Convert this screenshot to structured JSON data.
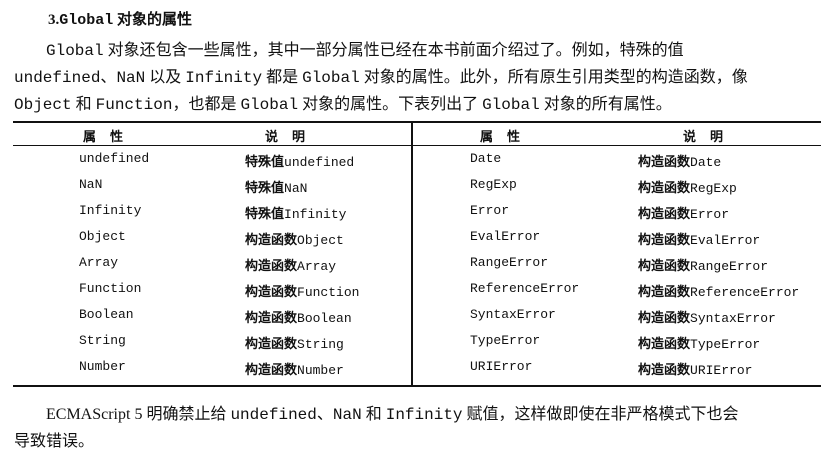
{
  "heading": {
    "num": "3.",
    "code": "Global",
    "text": " 对象的属性"
  },
  "paragraph1": [
    [
      {
        "c": "Global"
      },
      {
        "t": " 对象还包含一些属性，其中一部分属性已经在本书前面介绍过了。例如，特殊的值"
      }
    ],
    [
      {
        "c": "undefined"
      },
      {
        "t": "、"
      },
      {
        "c": "NaN"
      },
      {
        "t": " 以及 "
      },
      {
        "c": "Infinity"
      },
      {
        "t": " 都是 "
      },
      {
        "c": "Global"
      },
      {
        "t": " 对象的属性。此外，所有原生引用类型的构造函数，像"
      }
    ],
    [
      {
        "c": "Object"
      },
      {
        "t": " 和 "
      },
      {
        "c": "Function"
      },
      {
        "t": "，也都是 "
      },
      {
        "c": "Global"
      },
      {
        "t": " 对象的属性。下表列出了 "
      },
      {
        "c": "Global"
      },
      {
        "t": " 对象的所有属性。"
      }
    ]
  ],
  "table": {
    "headers": [
      "属性",
      "说明",
      "属性",
      "说明"
    ],
    "rows": [
      [
        [
          "undefined",
          "特殊值",
          "undefined"
        ],
        [
          "Date",
          "构造函数",
          "Date"
        ]
      ],
      [
        [
          "NaN",
          "特殊值",
          "NaN"
        ],
        [
          "RegExp",
          "构造函数",
          "RegExp"
        ]
      ],
      [
        [
          "Infinity",
          "特殊值",
          "Infinity"
        ],
        [
          "Error",
          "构造函数",
          "Error"
        ]
      ],
      [
        [
          "Object",
          "构造函数",
          "Object"
        ],
        [
          "EvalError",
          "构造函数",
          "EvalError"
        ]
      ],
      [
        [
          "Array",
          "构造函数",
          "Array"
        ],
        [
          "RangeError",
          "构造函数",
          "RangeError"
        ]
      ],
      [
        [
          "Function",
          "构造函数",
          "Function"
        ],
        [
          "ReferenceError",
          "构造函数",
          "ReferenceError"
        ]
      ],
      [
        [
          "Boolean",
          "构造函数",
          "Boolean"
        ],
        [
          "SyntaxError",
          "构造函数",
          "SyntaxError"
        ]
      ],
      [
        [
          "String",
          "构造函数",
          "String"
        ],
        [
          "TypeError",
          "构造函数",
          "TypeError"
        ]
      ],
      [
        [
          "Number",
          "构造函数",
          "Number"
        ],
        [
          "URIError",
          "构造函数",
          "URIError"
        ]
      ]
    ]
  },
  "paragraph2": [
    [
      {
        "t": "ECMAScript 5 明确禁止给 "
      },
      {
        "c": "undefined"
      },
      {
        "t": "、"
      },
      {
        "c": "NaN"
      },
      {
        "t": " 和 "
      },
      {
        "c": "Infinity"
      },
      {
        "t": " 赋值，这样做即使在非严格模式下也会"
      }
    ],
    [
      {
        "t": "导致错误。"
      }
    ]
  ]
}
